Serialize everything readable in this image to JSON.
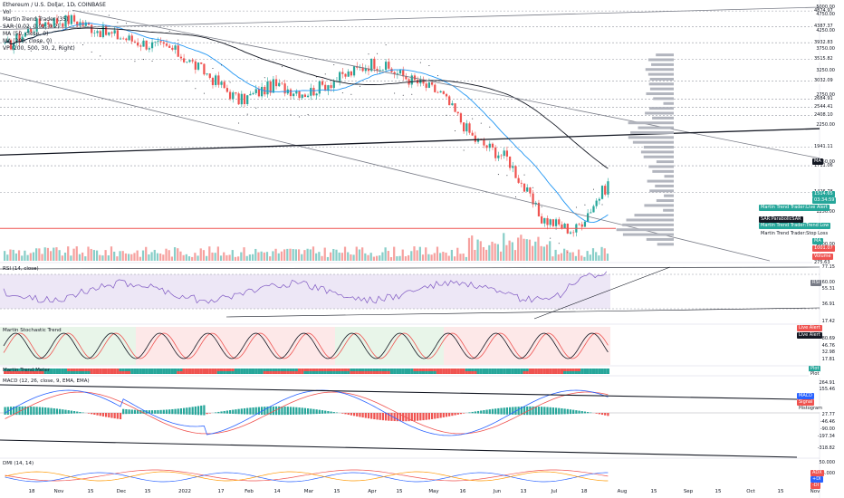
{
  "header": {
    "title": "Ethereum / U.S. Dollar, 1D, COINBASE",
    "indicators": [
      "Vol",
      "Martin Trend Trader (35)",
      "SAR (0.02, 0.02, 0.2)",
      "MA (50, close, 0)",
      "MA (200, close, 0)",
      "VP (200, 500, 30, 2, Right)"
    ]
  },
  "panes": {
    "rsi": "RSI (14, close)",
    "stoch": "Martin Stochastic Trend",
    "meter": "Martin Trend Meter",
    "macd": "MACD (12, 26, close, 9, EMA, EMA)",
    "dmi": "DMI (14, 14)"
  },
  "price_axis": [
    "5000.00",
    "4750.00",
    "4250.00",
    "3750.00",
    "3250.00",
    "2750.00",
    "2250.00",
    "1750.00",
    "1250.00",
    "1000.00"
  ],
  "price_levels": [
    "4874.97",
    "4387.37",
    "3932.83",
    "3515.82",
    "3032.09",
    "2684.91",
    "2544.41",
    "2408.10",
    "1941.11",
    "1711.06",
    "1426.78"
  ],
  "price_tags": [
    {
      "text": "MA",
      "bg": "#131722",
      "fg": "#ffffff"
    },
    {
      "text": "1514.65",
      "bg": "#26a69a",
      "fg": "#ffffff"
    },
    {
      "text": "03:34:59",
      "bg": "#26a69a",
      "fg": "#ffffff"
    },
    {
      "text": "Martin Trend Trader:Live Alert",
      "bg": "#26a69a",
      "fg": "#ffffff"
    },
    {
      "text": "SAR:ParabolicSAR",
      "bg": "#131722",
      "fg": "#ffffff"
    },
    {
      "text": "Martin Trend Trader:Trend Low",
      "bg": "#26a69a",
      "fg": "#ffffff"
    },
    {
      "text": "Martin Trend Trader:Stop Loss",
      "bg": "#ffffff",
      "fg": "#131722"
    },
    {
      "text": "MA",
      "bg": "#26a69a",
      "fg": "#ffffff"
    },
    {
      "text": "1001.07",
      "bg": "#ef5350",
      "fg": "#ffffff"
    },
    {
      "text": "Volume",
      "bg": "#ef5350",
      "fg": "#ffffff"
    },
    {
      "text": "275.63",
      "bg": "#ffffff",
      "fg": "#131722"
    }
  ],
  "rsi_labels": [
    "77.15",
    "60.00",
    "55.31",
    "36.91",
    "17.42"
  ],
  "rsi_tag": {
    "text": "RSI",
    "bg": "#787b86",
    "fg": "#ffffff"
  },
  "stoch_labels": [
    "80.69",
    "46.76",
    "32.98",
    "17.81"
  ],
  "stoch_tags": [
    {
      "text": "Live Alert",
      "bg": "#ef5350",
      "fg": "#ffffff"
    },
    {
      "text": "Live Alert",
      "bg": "#131722",
      "fg": "#ffffff"
    }
  ],
  "meter_tags": [
    {
      "text": "Plot",
      "bg": "#26a69a",
      "fg": "#ffffff"
    },
    {
      "text": "Plot",
      "bg": "#ffffff",
      "fg": "#131722"
    }
  ],
  "macd_labels": [
    "264.91",
    "155.46",
    "27.77",
    "-46.46",
    "-90.00",
    "-197.34",
    "-318.82"
  ],
  "macd_tags": [
    {
      "text": "MACD",
      "bg": "#2962ff",
      "fg": "#ffffff"
    },
    {
      "text": "Signal",
      "bg": "#ef5350",
      "fg": "#ffffff"
    },
    {
      "text": "Histogram",
      "bg": "#ffffff",
      "fg": "#131722"
    }
  ],
  "dmi_labels": [
    "50.000",
    "25.000"
  ],
  "dmi_tags": [
    {
      "text": "ADX",
      "bg": "#ef5350",
      "fg": "#ffffff"
    },
    {
      "text": "+DI",
      "bg": "#2962ff",
      "fg": "#ffffff"
    },
    {
      "text": "-DI",
      "bg": "#ef5350",
      "fg": "#ffffff"
    }
  ],
  "x_labels": [
    "18",
    "Nov",
    "15",
    "Dec",
    "15",
    "2022",
    "17",
    "Feb",
    "14",
    "Mar",
    "15",
    "Apr",
    "15",
    "May",
    "16",
    "Jun",
    "13",
    "Jul",
    "18",
    "Aug",
    "15",
    "Sep",
    "15",
    "Oct",
    "15",
    "Nov"
  ],
  "colors": {
    "up": "#26a69a",
    "down": "#ef5350",
    "ma50": "#2196f3",
    "ma200": "#131722",
    "vp": "#b2b5be",
    "rsi": "#7e57c2",
    "band": "#ede7f6"
  },
  "chart_data": {
    "type": "line",
    "title": "Ethereum / U.S. Dollar, 1D, COINBASE",
    "x": [
      "18",
      "Nov",
      "15",
      "Dec",
      "15",
      "2022",
      "17",
      "Feb",
      "14",
      "Mar",
      "15",
      "Apr",
      "15",
      "May",
      "16",
      "Jun",
      "13",
      "Jul",
      "18"
    ],
    "series": [
      {
        "name": "ETHUSD",
        "values": [
          3800,
          4500,
          4600,
          4200,
          3950,
          3750,
          3200,
          2650,
          2950,
          2800,
          3100,
          3450,
          3100,
          2800,
          2050,
          1800,
          1200,
          1100,
          1514.65
        ]
      }
    ],
    "ylim": [
      900,
      5000
    ],
    "yscale": "log"
  }
}
